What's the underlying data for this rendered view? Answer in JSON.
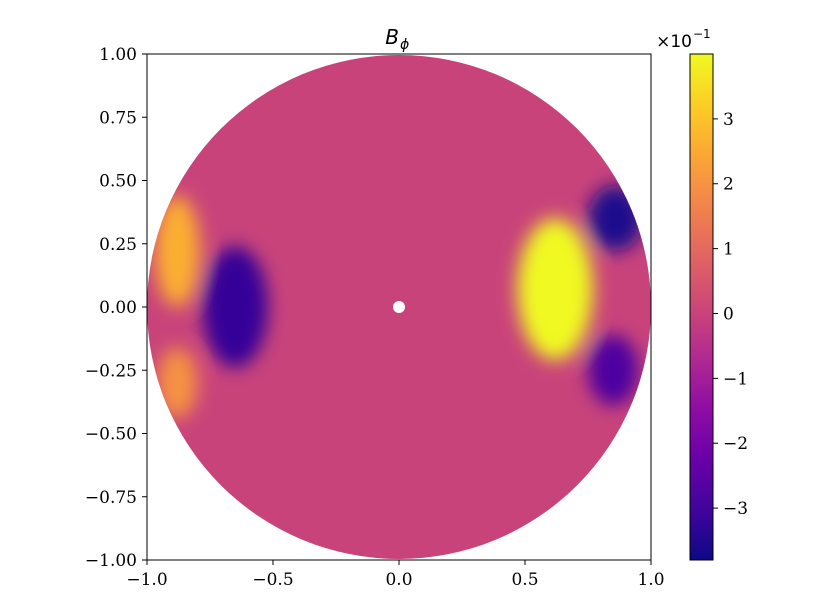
{
  "chart_data": {
    "type": "heatmap",
    "title": "B",
    "title_subscript": "ϕ",
    "xlabel": "",
    "ylabel": "",
    "xlim": [
      -1.0,
      1.0
    ],
    "ylim": [
      -1.0,
      1.0
    ],
    "x_ticks": [
      "−1.0",
      "−0.5",
      "0.0",
      "0.5",
      "1.0"
    ],
    "y_ticks": [
      "1.00",
      "0.75",
      "0.50",
      "0.25",
      "0.00",
      "−0.25",
      "−0.50",
      "−0.75",
      "−1.00"
    ],
    "grid": false,
    "domain_shape": "unit disk with small hole at center",
    "colorbar": {
      "colormap": "plasma",
      "multiplier": "×10",
      "multiplier_exponent": "−1",
      "vmin": -0.38,
      "vmax": 0.4,
      "ticks": [
        "3",
        "2",
        "1",
        "0",
        "−1",
        "−2",
        "−3"
      ],
      "tick_values": [
        3,
        2,
        1,
        0,
        -1,
        -2,
        -3
      ]
    },
    "features": [
      {
        "x": 0.62,
        "y": 0.07,
        "value": 0.4,
        "rx": 0.15,
        "ry": 0.28
      },
      {
        "x": 0.86,
        "y": 0.35,
        "value": -0.36,
        "rx": 0.11,
        "ry": 0.13
      },
      {
        "x": 0.85,
        "y": -0.25,
        "value": -0.28,
        "rx": 0.1,
        "ry": 0.14
      },
      {
        "x": -0.65,
        "y": 0.0,
        "value": -0.32,
        "rx": 0.13,
        "ry": 0.24
      },
      {
        "x": -0.88,
        "y": 0.22,
        "value": 0.26,
        "rx": 0.09,
        "ry": 0.22
      },
      {
        "x": -0.88,
        "y": -0.3,
        "value": 0.2,
        "rx": 0.08,
        "ry": 0.14
      }
    ]
  }
}
